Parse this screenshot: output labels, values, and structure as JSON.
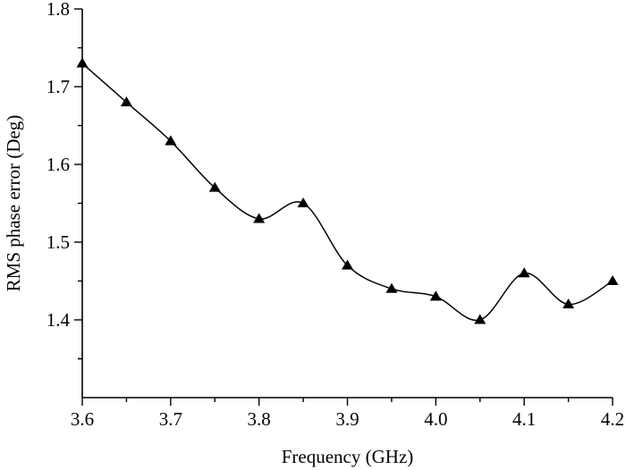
{
  "chart_data": {
    "type": "line",
    "title": "",
    "xlabel": "Frequency (GHz)",
    "ylabel": "RMS phase error (Deg)",
    "xlim": [
      3.6,
      4.2
    ],
    "ylim": [
      1.3,
      1.8
    ],
    "x_ticks": [
      "3.6",
      "3.7",
      "3.8",
      "3.9",
      "4.0",
      "4.1",
      "4.2"
    ],
    "y_ticks": [
      "1.4",
      "1.5",
      "1.6",
      "1.7",
      "1.8"
    ],
    "grid": false,
    "legend": "none",
    "marker": "triangle",
    "color": "#000000",
    "series": [
      {
        "x": [
          3.6,
          3.65,
          3.7,
          3.75,
          3.8,
          3.85,
          3.9,
          3.95,
          4.0,
          4.05,
          4.1,
          4.15,
          4.2
        ],
        "y": [
          1.73,
          1.68,
          1.63,
          1.57,
          1.53,
          1.55,
          1.47,
          1.44,
          1.43,
          1.4,
          1.46,
          1.42,
          1.45
        ]
      }
    ]
  }
}
